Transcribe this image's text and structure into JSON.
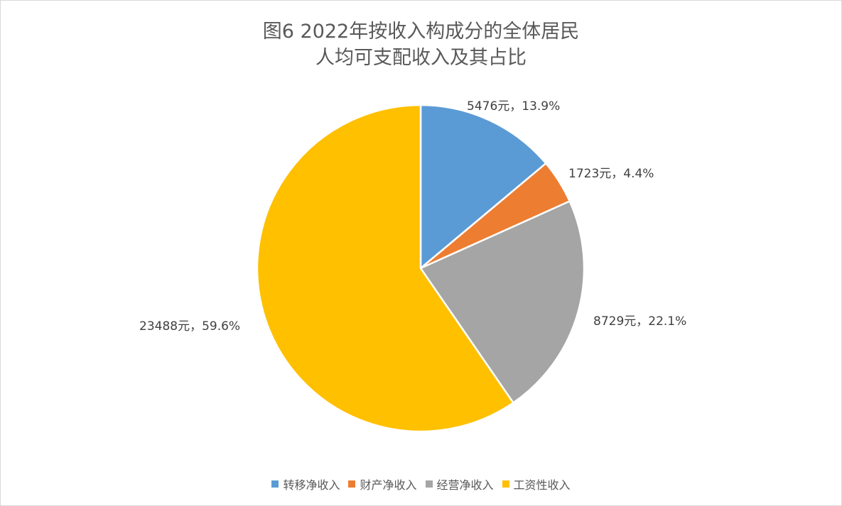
{
  "chart_data": {
    "type": "pie",
    "title_line1": "图6  2022年按收入构成分的全体居民",
    "title_line2": "人均可支配收入及其占比",
    "start_angle": "12 o'clock, clockwise",
    "slices": [
      {
        "name": "转移净收入",
        "value": 5476,
        "percent": 13.9,
        "label": "5476元，13.9%",
        "color": "#5b9bd5"
      },
      {
        "name": "财产净收入",
        "value": 1723,
        "percent": 4.4,
        "label": "1723元，4.4%",
        "color": "#ed7d31"
      },
      {
        "name": "经营净收入",
        "value": 8729,
        "percent": 22.1,
        "label": "8729元，22.1%",
        "color": "#a5a5a5"
      },
      {
        "name": "工资性收入",
        "value": 23488,
        "percent": 59.6,
        "label": "23488元，59.6%",
        "color": "#ffc000"
      }
    ],
    "legend_position": "bottom"
  }
}
